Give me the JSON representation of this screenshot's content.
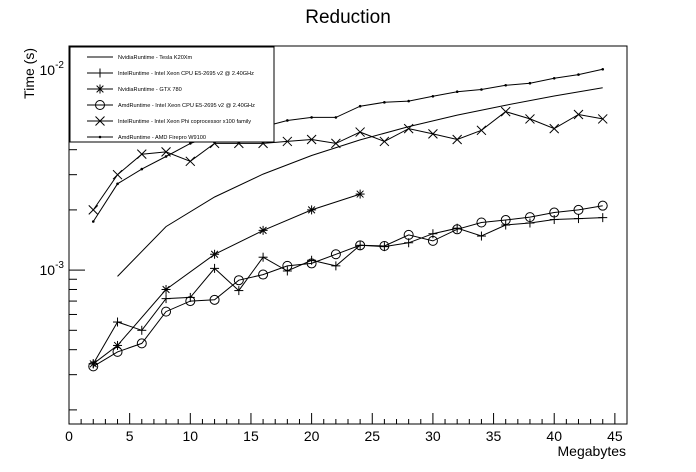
{
  "chart_data": {
    "type": "line",
    "title": "Reduction",
    "xlabel": "Megabytes",
    "ylabel": "Time (s)",
    "xlim": [
      0,
      46
    ],
    "ylim": [
      0.00017,
      0.0132
    ],
    "yscale": "log",
    "grid": false,
    "legend_position": "top-left",
    "x_ticks": [
      0,
      5,
      10,
      15,
      20,
      25,
      30,
      35,
      40,
      45
    ],
    "x_tick_labels": [
      "0",
      "5",
      "10",
      "15",
      "20",
      "25",
      "30",
      "35",
      "40",
      "45"
    ],
    "y_tick_labels": [
      {
        "value": 0.001,
        "base": "10",
        "exp": "-3"
      },
      {
        "value": 0.01,
        "base": "10",
        "exp": "-2"
      }
    ],
    "series": [
      {
        "name": "NvidiaRuntime - Tesla K20Xm",
        "marker": "none",
        "x": [
          4,
          8,
          12,
          16,
          20,
          24,
          28,
          32,
          36,
          40,
          44
        ],
        "y": [
          0.00093,
          0.00165,
          0.00232,
          0.00302,
          0.00374,
          0.00448,
          0.00522,
          0.00596,
          0.00668,
          0.00742,
          0.00816
        ]
      },
      {
        "name": "IntelRuntime - Intel Xeon CPU E5-2695 v2 @ 2.40GHz",
        "marker": "plus",
        "x": [
          2,
          4,
          6,
          8,
          10,
          12,
          14,
          16,
          18,
          20,
          22,
          24,
          26,
          28,
          30,
          32,
          34,
          36,
          38,
          40,
          42,
          44
        ],
        "y": [
          0.00034,
          0.00055,
          0.0005,
          0.00072,
          0.00073,
          0.00102,
          0.00079,
          0.00116,
          0.00099,
          0.00112,
          0.00105,
          0.00133,
          0.00131,
          0.00137,
          0.00152,
          0.00162,
          0.00148,
          0.00168,
          0.00172,
          0.00179,
          0.00181,
          0.00183
        ]
      },
      {
        "name": "NvidiaRuntime - GTX 780",
        "marker": "star",
        "x": [
          2,
          4,
          8,
          12,
          16,
          20,
          24
        ],
        "y": [
          0.00034,
          0.00042,
          0.0008,
          0.0012,
          0.00158,
          0.002,
          0.0024
        ]
      },
      {
        "name": "AmdRuntime - Intel Xeon CPU E5-2695 v2 @ 2.40GHz",
        "marker": "circle",
        "x": [
          2,
          4,
          6,
          8,
          10,
          12,
          14,
          16,
          18,
          20,
          22,
          24,
          26,
          28,
          30,
          32,
          34,
          36,
          38,
          40,
          42,
          44
        ],
        "y": [
          0.00033,
          0.00039,
          0.00043,
          0.00062,
          0.0007,
          0.00071,
          0.00089,
          0.00095,
          0.00105,
          0.00108,
          0.0012,
          0.00133,
          0.00132,
          0.0015,
          0.0014,
          0.0016,
          0.00173,
          0.00178,
          0.00184,
          0.00194,
          0.002,
          0.0021
        ]
      },
      {
        "name": "IntelRuntime - Intel Xeon Phi coprocessor x100 family",
        "marker": "cross",
        "x": [
          2,
          4,
          6,
          8,
          10,
          12,
          14,
          16,
          18,
          20,
          22,
          24,
          26,
          28,
          30,
          32,
          34,
          36,
          38,
          40,
          42,
          44
        ],
        "y": [
          0.002,
          0.003,
          0.0038,
          0.0039,
          0.0035,
          0.0043,
          0.0043,
          0.0043,
          0.0044,
          0.0045,
          0.0043,
          0.0049,
          0.0044,
          0.0051,
          0.0048,
          0.0045,
          0.005,
          0.0062,
          0.0057,
          0.0051,
          0.006,
          0.0057
        ]
      },
      {
        "name": "AmdRuntime - AMD Firepro W9100",
        "marker": "dot",
        "x": [
          2,
          4,
          6,
          8,
          10,
          12,
          14,
          16,
          18,
          20,
          22,
          24,
          26,
          28,
          30,
          32,
          34,
          36,
          38,
          40,
          42,
          44
        ],
        "y": [
          0.00175,
          0.0027,
          0.0032,
          0.0037,
          0.0043,
          0.0047,
          0.005,
          0.0052,
          0.0056,
          0.0058,
          0.0058,
          0.0066,
          0.0069,
          0.007,
          0.0074,
          0.0078,
          0.008,
          0.0084,
          0.0086,
          0.0091,
          0.0095,
          0.0101
        ]
      }
    ]
  }
}
